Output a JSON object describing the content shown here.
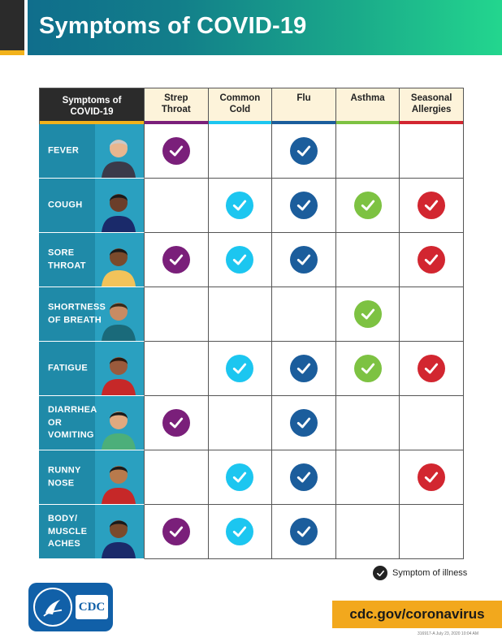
{
  "title": "Symptoms of COVID-19",
  "colors": {
    "strep": "#7a1f7a",
    "cold": "#1cc6f0",
    "flu": "#1b5d9c",
    "asthma": "#7dc242",
    "allergies": "#d22630",
    "row_header": "#1f8aa8",
    "header_cell": "#fdf3da"
  },
  "table": {
    "corner_label": "Symptoms of\nCOVID-19",
    "columns": [
      {
        "key": "strep",
        "label": "Strep\nThroat",
        "bar_color": "#7a1f7a"
      },
      {
        "key": "cold",
        "label": "Common\nCold",
        "bar_color": "#1cc6f0"
      },
      {
        "key": "flu",
        "label": "Flu",
        "bar_color": "#1b5d9c"
      },
      {
        "key": "asthma",
        "label": "Asthma",
        "bar_color": "#7dc242"
      },
      {
        "key": "allergies",
        "label": "Seasonal\nAllergies",
        "bar_color": "#d22630"
      }
    ],
    "rows": [
      {
        "label": "FEVER",
        "icon": "fever-thermometer-person-icon",
        "checks": [
          true,
          false,
          true,
          false,
          false
        ]
      },
      {
        "label": "COUGH",
        "icon": "coughing-person-icon",
        "checks": [
          false,
          true,
          true,
          true,
          true
        ]
      },
      {
        "label": "SORE\nTHROAT",
        "icon": "sore-throat-person-icon",
        "checks": [
          true,
          true,
          true,
          false,
          true
        ]
      },
      {
        "label": "SHORTNESS\nOF BREATH",
        "icon": "short-breath-person-icon",
        "checks": [
          false,
          false,
          false,
          true,
          false
        ]
      },
      {
        "label": "FATIGUE",
        "icon": "fatigue-person-icon",
        "checks": [
          false,
          true,
          true,
          true,
          true
        ]
      },
      {
        "label": "DIARRHEA\nOR\nVOMITING",
        "icon": "toilet-person-icon",
        "checks": [
          true,
          false,
          true,
          false,
          false
        ]
      },
      {
        "label": "RUNNY\nNOSE",
        "icon": "runny-nose-person-icon",
        "checks": [
          false,
          true,
          true,
          false,
          true
        ]
      },
      {
        "label": "BODY/\nMUSCLE\nACHES",
        "icon": "muscle-ache-person-icon",
        "checks": [
          true,
          true,
          true,
          false,
          false
        ]
      }
    ]
  },
  "legend": {
    "label": "Symptom of illness",
    "icon": "check-icon"
  },
  "footer": {
    "logo_text": "CDC",
    "url": "cdc.gov/coronavirus",
    "fineprint": "316917-A July 23, 2020 10:04 AM"
  }
}
